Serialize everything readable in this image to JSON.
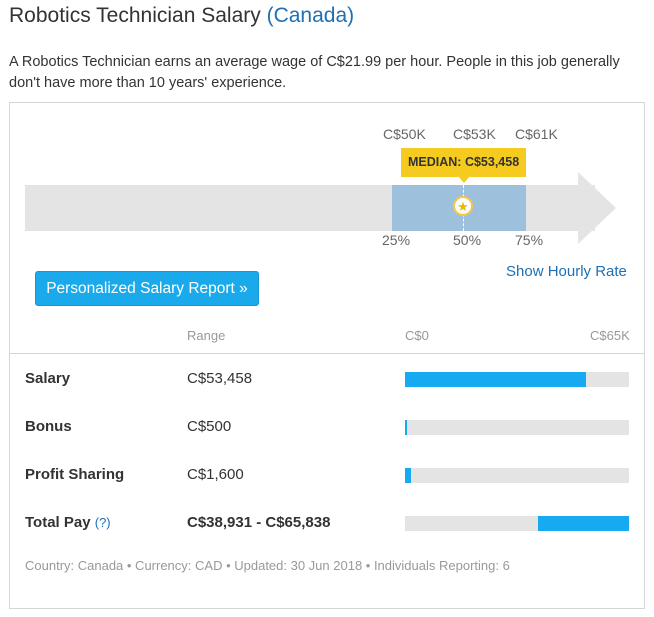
{
  "header": {
    "title": "Robotics Technician Salary",
    "location": "(Canada)"
  },
  "intro": "A Robotics Technician earns an average wage of C$21.99 per hour. People in this job generally don't have more than 10 years' experience.",
  "distribution": {
    "p25_amount": "C$50K",
    "p50_amount": "C$53K",
    "p75_amount": "C$61K",
    "median_label": "MEDIAN: C$53,458",
    "p25_label": "25%",
    "p50_label": "50%",
    "p75_label": "75%"
  },
  "actions": {
    "report_button": "Personalized Salary Report »",
    "hourly_link": "Show Hourly Rate"
  },
  "table": {
    "range_header": "Range",
    "scale_min": "C$0",
    "scale_max": "C$65K",
    "rows": [
      {
        "label": "Salary",
        "value": "C$53,458",
        "bar_start": 0.0,
        "bar_end": 0.81
      },
      {
        "label": "Bonus",
        "value": "C$500",
        "bar_start": 0.0,
        "bar_end": 0.01
      },
      {
        "label": "Profit Sharing",
        "value": "C$1,600",
        "bar_start": 0.0,
        "bar_end": 0.025
      },
      {
        "label": "Total Pay",
        "help": "(?)",
        "value": "C$38,931 - C$65,838",
        "bar_start": 0.595,
        "bar_end": 1.0
      }
    ]
  },
  "footer": "Country: Canada • Currency: CAD • Updated: 30 Jun 2018 • Individuals Reporting: 6",
  "colors": {
    "accent_blue": "#18aaf0",
    "link_blue": "#1f6fb4",
    "median_yellow": "#f6cb1f",
    "range_blue": "#9dc1dc"
  },
  "icons": {
    "median_marker": "star-icon"
  }
}
